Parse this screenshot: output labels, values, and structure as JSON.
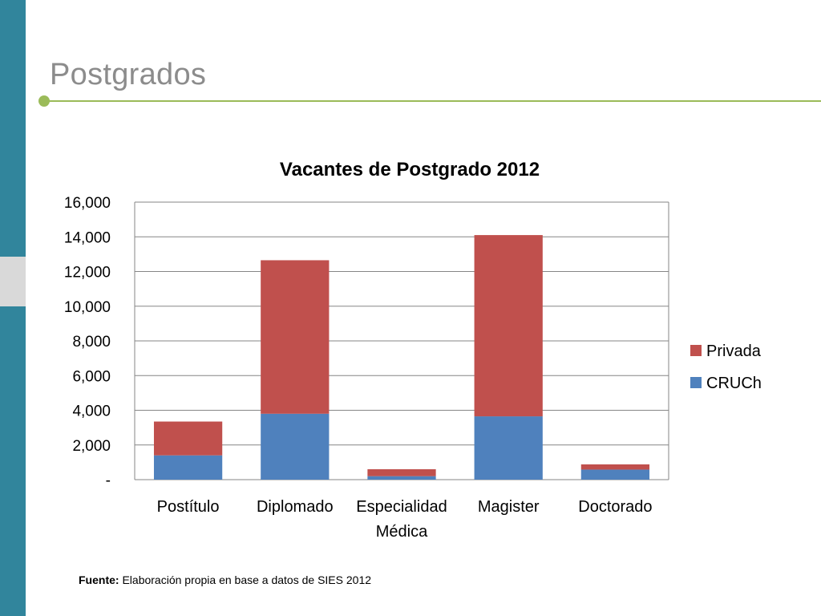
{
  "slide": {
    "title": "Postgrados",
    "source_label": "Fuente:",
    "source_text": "Elaboración propia en base a datos de SIES 2012"
  },
  "colors": {
    "sidebar": "#31859c",
    "accent": "#9bbb59",
    "series_cruch": "#4f81bd",
    "series_privada": "#c0504d"
  },
  "chart_data": {
    "type": "bar",
    "stacked": true,
    "title": "Vacantes de Postgrado 2012",
    "categories": [
      "Postítulo",
      "Diplomado",
      "Especialidad Médica",
      "Magister",
      "Doctorado"
    ],
    "series": [
      {
        "name": "CRUCh",
        "color": "#4f81bd",
        "values": [
          1400,
          3800,
          200,
          3650,
          580
        ]
      },
      {
        "name": "Privada",
        "color": "#c0504d",
        "values": [
          1950,
          8850,
          400,
          10450,
          300
        ]
      }
    ],
    "ylim": [
      0,
      16000
    ],
    "yticks": [
      0,
      2000,
      4000,
      6000,
      8000,
      10000,
      12000,
      14000,
      16000
    ],
    "ytick_labels": [
      "-",
      "2,000",
      "4,000",
      "6,000",
      "8,000",
      "10,000",
      "12,000",
      "14,000",
      "16,000"
    ],
    "grid": true,
    "legend_position": "right"
  }
}
